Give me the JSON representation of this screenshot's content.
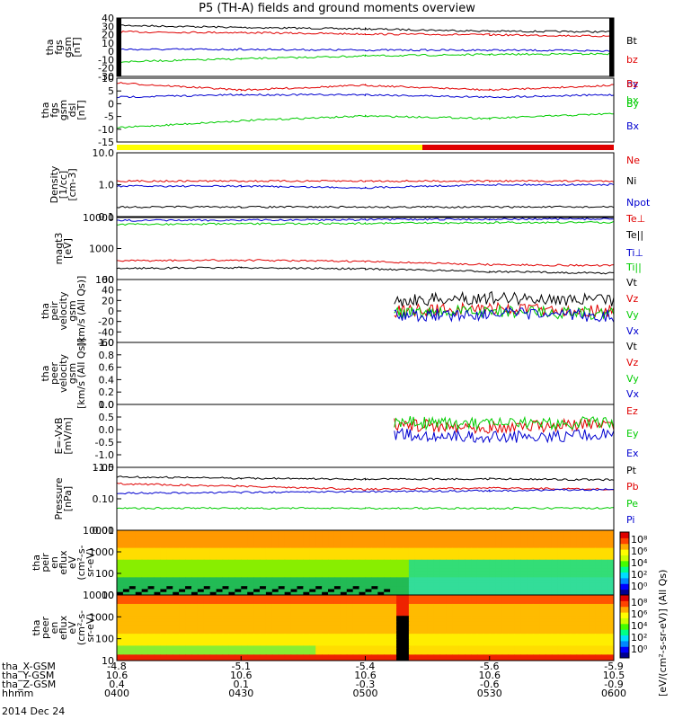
{
  "title": "P5 (TH-A) fields and ground moments overview",
  "date_label": "2014 Dec 24",
  "colorbar_label": "[eV/(cm²-s-sr-eV)] (All Qs)",
  "colorbar_ticks": [
    "10⁸",
    "10⁶",
    "10⁴",
    "10²",
    "10⁰"
  ],
  "colors": {
    "black": "#000000",
    "red": "#e00000",
    "green": "#00cc00",
    "blue": "#0000d0",
    "yellow": "#ffff00"
  },
  "time_axis": {
    "start": "0400",
    "end": "0600",
    "rows": [
      {
        "name": "tha_X-GSM",
        "values": [
          "-4.8",
          "-5.1",
          "-5.4",
          "-5.6",
          "-5.9"
        ]
      },
      {
        "name": "tha_Y-GSM",
        "values": [
          "10.6",
          "10.6",
          "10.6",
          "10.6",
          "10.5"
        ]
      },
      {
        "name": "tha_Z-GSM",
        "values": [
          "0.4",
          "0.1",
          "-0.3",
          "-0.6",
          "-0.9"
        ]
      },
      {
        "name": "hhmm",
        "values": [
          "0400",
          "0430",
          "0500",
          "0530",
          "0600"
        ]
      }
    ]
  },
  "chart_data": [
    {
      "type": "line",
      "ylabel": [
        "tha",
        "fgs",
        "gsm",
        "[nT]"
      ],
      "ylim": [
        -40,
        40
      ],
      "yticks": [
        "40",
        "30",
        "20",
        "10",
        "0",
        "-10",
        "-20",
        "-30"
      ],
      "series": [
        {
          "name": "Bt",
          "color": "#000000",
          "x": [
            "04:00",
            "04:30",
            "05:00",
            "05:30",
            "06:00"
          ],
          "values": [
            30,
            27,
            25,
            22,
            21
          ]
        },
        {
          "name": "bz",
          "color": "#e00000",
          "x": [
            "04:00",
            "04:30",
            "05:00",
            "05:30",
            "06:00"
          ],
          "values": [
            21,
            20,
            18,
            17,
            15
          ]
        },
        {
          "name": "by",
          "color": "#0000d0",
          "x": [
            "04:00",
            "04:30",
            "05:00",
            "05:30",
            "06:00"
          ],
          "values": [
            -3,
            -3,
            -4,
            -4,
            -5
          ]
        },
        {
          "name": "bx",
          "color": "#00cc00",
          "x": [
            "04:00",
            "04:30",
            "05:00",
            "05:30",
            "06:00"
          ],
          "values": [
            -20,
            -16,
            -12,
            -10,
            -9
          ]
        }
      ]
    },
    {
      "type": "line",
      "ylabel": [
        "tha",
        "fgs",
        "gsm",
        "dsl",
        "[nT]"
      ],
      "ylim": [
        -17,
        10
      ],
      "yticks": [
        "10",
        "5",
        "0",
        "-5",
        "-10",
        "-15"
      ],
      "series": [
        {
          "name": "Bz",
          "color": "#e00000",
          "x": [
            "04:00",
            "04:30",
            "05:00",
            "05:30",
            "06:00"
          ],
          "values": [
            8,
            5,
            7,
            5,
            7
          ]
        },
        {
          "name": "By",
          "color": "#00cc00",
          "x": [
            "04:00",
            "04:30",
            "05:00",
            "05:30",
            "06:00"
          ],
          "values": [
            -11,
            -8,
            -6,
            -7,
            -5
          ]
        },
        {
          "name": "Bx",
          "color": "#0000d0",
          "x": [
            "04:00",
            "04:30",
            "05:00",
            "05:30",
            "06:00"
          ],
          "values": [
            2,
            3,
            3,
            2,
            3
          ]
        }
      ]
    },
    {
      "type": "line",
      "ylabel": [
        "Density",
        "[1/cc]",
        "[cm-3]"
      ],
      "ylim": [
        0.1,
        10
      ],
      "log": true,
      "yticks": [
        "10.0",
        "1.0",
        "0.1"
      ],
      "series": [
        {
          "name": "Ne",
          "color": "#e00000",
          "x": [
            "04:00",
            "04:30",
            "05:00",
            "05:30",
            "06:00"
          ],
          "values": [
            1.3,
            1.3,
            1.3,
            1.3,
            1.3
          ]
        },
        {
          "name": "Ni",
          "color": "#000000",
          "x": [
            "04:00",
            "04:30",
            "05:00",
            "05:30",
            "06:00"
          ],
          "values": [
            0.2,
            0.2,
            0.2,
            0.2,
            0.2
          ]
        },
        {
          "name": "Npot",
          "color": "#0000d0",
          "x": [
            "04:00",
            "04:30",
            "05:00",
            "05:30",
            "06:00"
          ],
          "values": [
            0.9,
            0.9,
            0.8,
            1.0,
            1.0
          ]
        }
      ]
    },
    {
      "type": "line",
      "ylabel": [
        "magt3",
        "[eV]"
      ],
      "ylim": [
        100,
        10000
      ],
      "log": true,
      "yticks": [
        "10000",
        "1000",
        "100"
      ],
      "series": [
        {
          "name": "Te⊥",
          "color": "#e00000",
          "x": [
            "04:00",
            "04:30",
            "05:00",
            "05:30",
            "06:00"
          ],
          "values": [
            400,
            420,
            380,
            300,
            280
          ]
        },
        {
          "name": "Te||",
          "color": "#000000",
          "x": [
            "04:00",
            "04:30",
            "05:00",
            "05:30",
            "06:00"
          ],
          "values": [
            230,
            240,
            220,
            180,
            160
          ]
        },
        {
          "name": "Ti⊥",
          "color": "#0000d0",
          "x": [
            "04:00",
            "04:30",
            "05:00",
            "05:30",
            "06:00"
          ],
          "values": [
            8000,
            8200,
            8500,
            8800,
            9000
          ]
        },
        {
          "name": "Ti||",
          "color": "#00cc00",
          "x": [
            "04:00",
            "04:30",
            "05:00",
            "05:30",
            "06:00"
          ],
          "values": [
            6000,
            6200,
            6500,
            6800,
            7000
          ]
        }
      ]
    },
    {
      "type": "line",
      "ylabel": [
        "tha",
        "peir",
        "velocity",
        "gsm",
        "[km/s (All Qs)]"
      ],
      "ylim": [
        -60,
        60
      ],
      "yticks": [
        "60",
        "40",
        "20",
        "0",
        "-20",
        "-40",
        "-60"
      ],
      "series": [
        {
          "name": "Vt",
          "color": "#000000",
          "x": [
            "05:07",
            "05:30",
            "06:00"
          ],
          "values": [
            20,
            25,
            20
          ]
        },
        {
          "name": "Vz",
          "color": "#e00000",
          "x": [
            "05:07",
            "05:30",
            "06:00"
          ],
          "values": [
            0,
            5,
            0
          ]
        },
        {
          "name": "Vy",
          "color": "#00cc00",
          "x": [
            "05:07",
            "05:30",
            "06:00"
          ],
          "values": [
            -5,
            0,
            -5
          ]
        },
        {
          "name": "Vx",
          "color": "#0000d0",
          "x": [
            "05:07",
            "05:30",
            "06:00"
          ],
          "values": [
            -10,
            -5,
            -10
          ]
        }
      ]
    },
    {
      "type": "line",
      "ylabel": [
        "tha",
        "peer",
        "velocity",
        "gsm",
        "[km/s (All Qs)]"
      ],
      "ylim": [
        0,
        1
      ],
      "yticks": [
        "1.0",
        "0.8",
        "0.6",
        "0.4",
        "0.2",
        "0.0"
      ],
      "series": [
        {
          "name": "Vt",
          "color": "#000000",
          "x": [],
          "values": []
        },
        {
          "name": "Vz",
          "color": "#e00000",
          "x": [],
          "values": []
        },
        {
          "name": "Vy",
          "color": "#00cc00",
          "x": [],
          "values": []
        },
        {
          "name": "Vx",
          "color": "#0000d0",
          "x": [],
          "values": []
        }
      ]
    },
    {
      "type": "line",
      "ylabel": [
        "E=-VxB",
        "[mV/m]"
      ],
      "ylim": [
        -1.5,
        1.0
      ],
      "yticks": [
        "1.0",
        "0.5",
        "0.0",
        "-0.5",
        "-1.0",
        "-1.5"
      ],
      "series": [
        {
          "name": "Ez",
          "color": "#e00000",
          "x": [
            "05:07",
            "05:30",
            "06:00"
          ],
          "values": [
            0.2,
            0.1,
            0.2
          ]
        },
        {
          "name": "Ey",
          "color": "#00cc00",
          "x": [
            "05:07",
            "05:30",
            "06:00"
          ],
          "values": [
            0.3,
            0.2,
            0.3
          ]
        },
        {
          "name": "Ex",
          "color": "#0000d0",
          "x": [
            "05:07",
            "05:30",
            "06:00"
          ],
          "values": [
            -0.2,
            -0.3,
            -0.2
          ]
        }
      ]
    },
    {
      "type": "line",
      "ylabel": [
        "Pressure",
        "[nPa]"
      ],
      "ylim": [
        0.01,
        1
      ],
      "log": true,
      "yticks": [
        "1.00",
        "0.10",
        "0.01"
      ],
      "series": [
        {
          "name": "Pt",
          "color": "#000000",
          "x": [
            "04:00",
            "04:30",
            "05:00",
            "05:30",
            "06:00"
          ],
          "values": [
            0.5,
            0.45,
            0.42,
            0.43,
            0.4
          ]
        },
        {
          "name": "Pb",
          "color": "#e00000",
          "x": [
            "04:00",
            "04:30",
            "05:00",
            "05:30",
            "06:00"
          ],
          "values": [
            0.3,
            0.25,
            0.2,
            0.22,
            0.2
          ]
        },
        {
          "name": "Pe",
          "color": "#00cc00",
          "x": [
            "04:00",
            "04:30",
            "05:00",
            "05:30",
            "06:00"
          ],
          "values": [
            0.05,
            0.05,
            0.05,
            0.05,
            0.05
          ]
        },
        {
          "name": "Pi",
          "color": "#0000d0",
          "x": [
            "04:00",
            "04:30",
            "05:00",
            "05:30",
            "06:00"
          ],
          "values": [
            0.15,
            0.16,
            0.17,
            0.18,
            0.2
          ]
        }
      ]
    },
    {
      "type": "heatmap",
      "ylabel": [
        "tha",
        "peir",
        "en",
        "eflux",
        "eV",
        "(cm²-s-",
        "sr-eV)"
      ],
      "ylim": [
        5,
        30000
      ],
      "log": true,
      "yticks": [
        "10000",
        "1000",
        "100",
        "10"
      ]
    },
    {
      "type": "heatmap",
      "ylabel": [
        "tha",
        "peer",
        "en",
        "eflux",
        "eV",
        "(cm²-s-",
        "sr-eV)"
      ],
      "ylim": [
        5,
        30000
      ],
      "log": true,
      "yticks": [
        "10000",
        "1000",
        "100",
        "10"
      ]
    }
  ]
}
